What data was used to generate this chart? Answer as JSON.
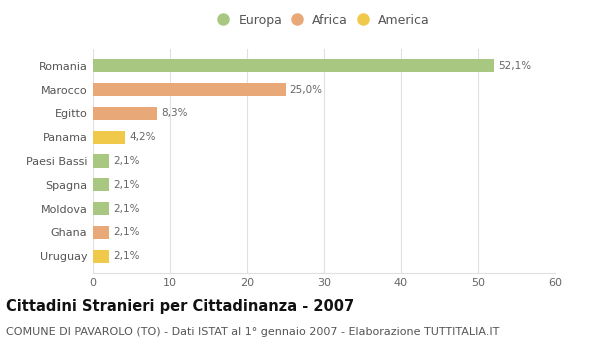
{
  "categories": [
    "Romania",
    "Marocco",
    "Egitto",
    "Panama",
    "Paesi Bassi",
    "Spagna",
    "Moldova",
    "Ghana",
    "Uruguay"
  ],
  "values": [
    52.1,
    25.0,
    8.3,
    4.2,
    2.1,
    2.1,
    2.1,
    2.1,
    2.1
  ],
  "labels": [
    "52,1%",
    "25,0%",
    "8,3%",
    "4,2%",
    "2,1%",
    "2,1%",
    "2,1%",
    "2,1%",
    "2,1%"
  ],
  "colors": [
    "#a8c882",
    "#e8a878",
    "#e8a878",
    "#f0c84a",
    "#a8c882",
    "#a8c882",
    "#a8c882",
    "#e8a878",
    "#f0c84a"
  ],
  "legend_labels": [
    "Europa",
    "Africa",
    "America"
  ],
  "legend_colors": [
    "#a8c882",
    "#e8a878",
    "#f0c84a"
  ],
  "title": "Cittadini Stranieri per Cittadinanza - 2007",
  "subtitle": "COMUNE DI PAVAROLO (TO) - Dati ISTAT al 1° gennaio 2007 - Elaborazione TUTTITALIA.IT",
  "xlim": [
    0,
    60
  ],
  "xticks": [
    0,
    10,
    20,
    30,
    40,
    50,
    60
  ],
  "background_color": "#ffffff",
  "grid_color": "#e0e0e0",
  "bar_height": 0.55,
  "title_fontsize": 10.5,
  "subtitle_fontsize": 8,
  "label_fontsize": 7.5,
  "tick_fontsize": 8,
  "legend_fontsize": 9
}
